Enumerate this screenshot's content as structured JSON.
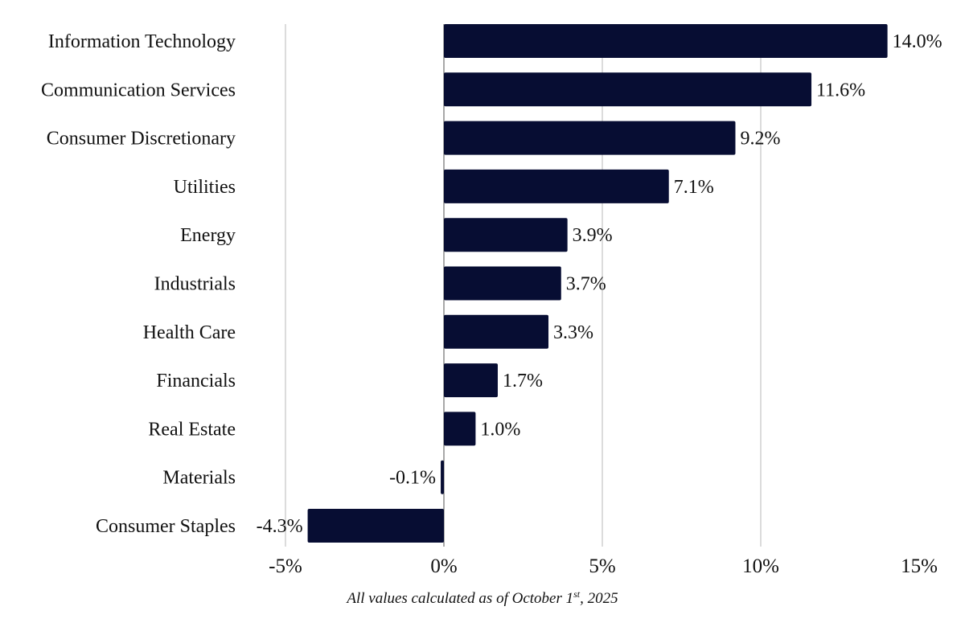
{
  "chart_data": {
    "type": "bar",
    "orientation": "horizontal",
    "title": "",
    "xlabel": "",
    "ylabel": "",
    "categories": [
      "Information Technology",
      "Communication Services",
      "Consumer Discretionary",
      "Utilities",
      "Energy",
      "Industrials",
      "Health Care",
      "Financials",
      "Real Estate",
      "Materials",
      "Consumer Staples"
    ],
    "values": [
      14.0,
      11.6,
      9.2,
      7.1,
      3.9,
      3.7,
      3.3,
      1.7,
      1.0,
      -0.1,
      -4.3
    ],
    "value_labels": [
      "14.0%",
      "11.6%",
      "9.2%",
      "7.1%",
      "3.9%",
      "3.7%",
      "3.3%",
      "1.7%",
      "1.0%",
      "-0.1%",
      "-4.3%"
    ],
    "unit": "%",
    "xlim": [
      -5,
      15
    ],
    "x_ticks": [
      -5,
      0,
      5,
      10,
      15
    ],
    "x_tick_labels": [
      "-5%",
      "0%",
      "5%",
      "10%",
      "15%"
    ],
    "grid": "vertical",
    "legend": "none",
    "bar_color": "#070d33",
    "annotation": {
      "prefix": "All values calculated as of October 1",
      "superscript": "st",
      "suffix": ", 2025"
    }
  }
}
